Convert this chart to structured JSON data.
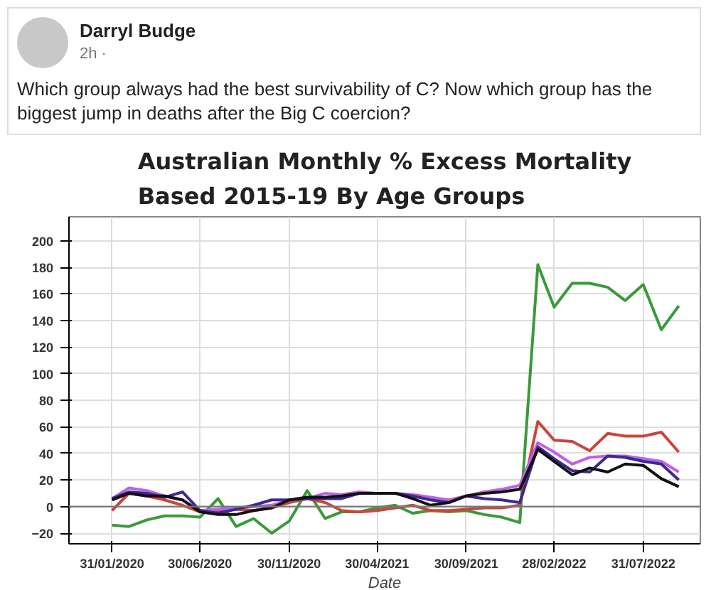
{
  "chart_data": {
    "type": "line",
    "title": "Australian Monthly % Excess Mortality\nBased 2015-19 By Age Groups",
    "xlabel": "Date",
    "annotations": [
      "Darryl Budge",
      "2h ·",
      "Which group always had the best survivability of C? Now which group has the biggest jump in deaths after the Big C coercion?"
    ],
    "x": [
      "2020-01-31",
      "2020-02-29",
      "2020-03-31",
      "2020-04-30",
      "2020-05-31",
      "2020-06-30",
      "2020-07-31",
      "2020-08-31",
      "2020-09-30",
      "2020-10-31",
      "2020-11-30",
      "2020-12-31",
      "2021-01-31",
      "2021-02-28",
      "2021-03-31",
      "2021-04-30",
      "2021-05-31",
      "2021-06-30",
      "2021-07-31",
      "2021-08-31",
      "2021-09-30",
      "2021-10-31",
      "2021-11-30",
      "2021-12-31",
      "2022-01-31",
      "2022-02-28",
      "2022-03-31",
      "2022-04-30",
      "2022-05-31",
      "2022-06-30",
      "2022-07-31",
      "2022-08-31",
      "2022-09-30"
    ],
    "series": [
      {
        "color": "#3a9a3a",
        "values": [
          -14,
          -15,
          -10,
          -7,
          -7,
          -8,
          6,
          -15,
          -9,
          -20,
          -11,
          12,
          -9,
          -4,
          -4,
          -1,
          1,
          -5,
          -3,
          -4,
          -3,
          -6,
          -8,
          -12,
          182,
          150,
          168,
          168,
          165,
          155,
          167,
          133,
          151
        ]
      },
      {
        "color": "#c8463c",
        "values": [
          -3,
          10,
          8,
          5,
          1,
          -4,
          -3,
          -2,
          -3,
          -1,
          3,
          6,
          3,
          -3,
          -4,
          -3,
          -1,
          1,
          -3,
          -3,
          -2,
          -1,
          -1,
          1,
          64,
          50,
          49,
          42,
          55,
          53,
          53,
          56,
          41
        ]
      },
      {
        "color": "#c060e8",
        "values": [
          6,
          14,
          12,
          8,
          5,
          -3,
          -2,
          -1,
          0,
          1,
          5,
          6,
          10,
          9,
          11,
          10,
          10,
          9,
          7,
          5,
          8,
          11,
          13,
          16,
          48,
          41,
          32,
          37,
          38,
          38,
          36,
          34,
          26
        ]
      },
      {
        "color": "#3a2a90",
        "values": [
          6,
          11,
          10,
          7,
          11,
          -3,
          -5,
          -2,
          1,
          5,
          5,
          6,
          6,
          6,
          10,
          10,
          10,
          8,
          5,
          3,
          8,
          6,
          5,
          3,
          45,
          36,
          27,
          26,
          38,
          37,
          34,
          32,
          20
        ]
      },
      {
        "color": "#111111",
        "values": [
          5,
          10,
          8,
          8,
          5,
          -4,
          -6,
          -6,
          -3,
          -1,
          5,
          7,
          7,
          8,
          10,
          10,
          10,
          6,
          1,
          3,
          8,
          10,
          11,
          13,
          43,
          34,
          24,
          29,
          26,
          32,
          31,
          21,
          15
        ]
      }
    ],
    "xlim": [
      "2019-11-18",
      "2022-11-06"
    ],
    "xticks": [
      {
        "value": "2020-01-31",
        "label": "31/01/2020"
      },
      {
        "value": "2020-06-30",
        "label": "30/06/2020"
      },
      {
        "value": "2020-11-30",
        "label": "30/11/2020"
      },
      {
        "value": "2021-04-30",
        "label": "30/04/2021"
      },
      {
        "value": "2021-09-30",
        "label": "30/09/2021"
      },
      {
        "value": "2022-02-28",
        "label": "28/02/2022"
      },
      {
        "value": "2022-07-31",
        "label": "31/07/2022"
      }
    ],
    "ylim": [
      -28,
      218
    ],
    "yticks": [
      -20,
      0,
      20,
      40,
      60,
      80,
      100,
      120,
      140,
      160,
      180,
      200
    ],
    "ref_lines": [
      {
        "axis": "y",
        "value": 0,
        "color": "#777777"
      }
    ],
    "grid": true,
    "marker": "none",
    "line_style": "solid"
  }
}
